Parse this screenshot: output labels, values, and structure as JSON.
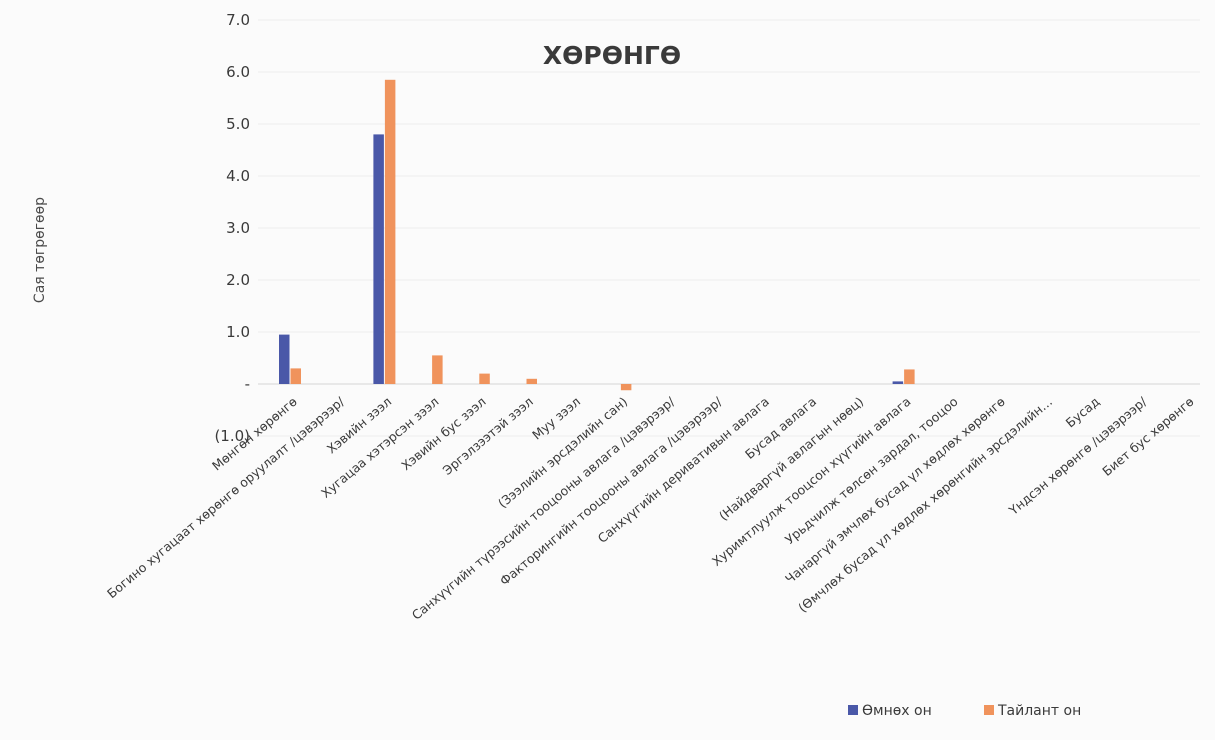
{
  "chart_data": {
    "type": "bar",
    "title": "ХӨРӨНГӨ",
    "xlabel": "",
    "ylabel": "Сая төгрөгөөр",
    "ylim": [
      -1.0,
      7.0
    ],
    "y_ticks": [
      "(1.0)",
      "-",
      "1.0",
      "2.0",
      "3.0",
      "4.0",
      "5.0",
      "6.0",
      "7.0"
    ],
    "y_tick_values": [
      -1,
      0,
      1,
      2,
      3,
      4,
      5,
      6,
      7
    ],
    "grid": true,
    "legend_position": "bottom-right",
    "categories": [
      "Мөнгөн хөрөнгө",
      "Богино хугацаат хөрөнгө оруулалт /цэвэрээр/",
      "Хэвийн зээл",
      "Хугацаа хэтэрсэн зээл",
      "Хэвийн бус зээл",
      "Эргэлзээтэй зээл",
      "Муу зээл",
      "(Зээлийн эрсдэлийн сан)",
      "Санхүүгийн түрээсийн тооцооны авлага /цэвэрээр/",
      "Факторингийн тооцооны авлага /цэвэрээр/",
      "Санхүүгийн деривативын авлага",
      "Бусад авлага",
      "(Найдваргүй авлагын нөөц)",
      "Хуримтлуулж тооцсон хүүгийн авлага",
      "Урьдчилж төлсөн зардал, тооцоо",
      "Чанаргүй эмчлөх бусад үл хөдлөх хөрөнгө",
      "(Өмчлөх бусад үл хөдлөх хөрөнгийн эрсдэлийн…",
      "Бусад",
      "Үндсэн хөрөнгө /цэвэрээр/",
      "Биет бус хөрөнгө"
    ],
    "series": [
      {
        "name": "Өмнөх он",
        "color": "#4a58a8",
        "values": [
          0.95,
          0,
          4.8,
          0,
          0,
          0,
          0,
          0,
          0,
          0,
          0,
          0,
          0,
          0.05,
          0,
          0,
          0,
          0,
          0,
          0
        ]
      },
      {
        "name": "Тайлант он",
        "color": "#f0935c",
        "values": [
          0.3,
          0,
          5.85,
          0.55,
          0.2,
          0.1,
          0,
          -0.12,
          0,
          0,
          0,
          0,
          0,
          0.28,
          0,
          0,
          0,
          0,
          0,
          0
        ]
      }
    ]
  }
}
